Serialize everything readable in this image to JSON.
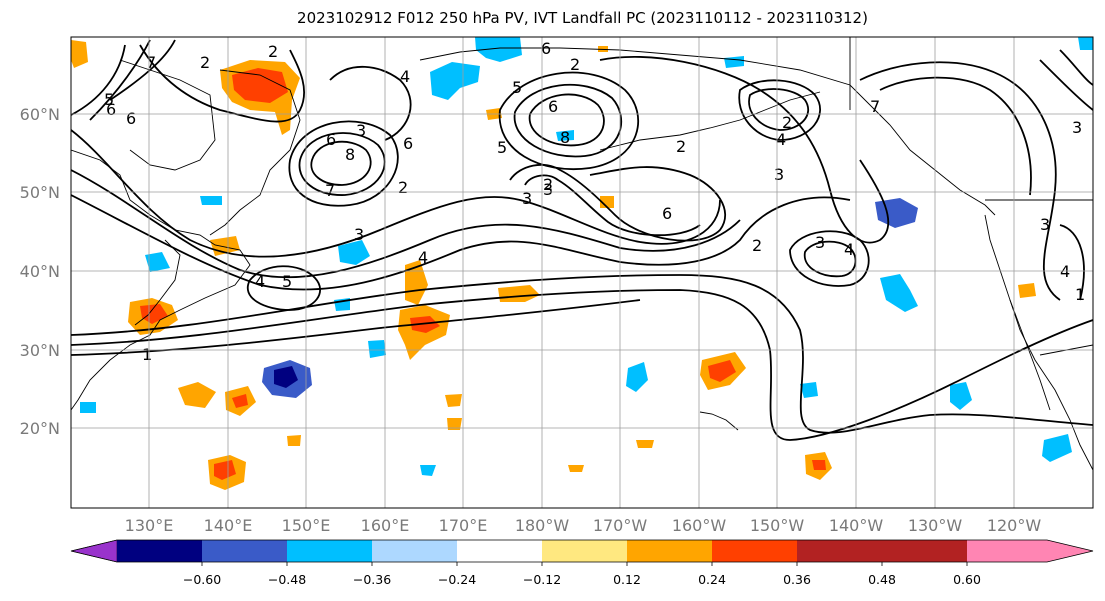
{
  "title": "2023102912 F012 250 hPa PV, IVT Landfall PC (2023110112 - 2023110312)",
  "lat_labels": [
    "60°N",
    "50°N",
    "40°N",
    "30°N",
    "20°N"
  ],
  "lon_labels": [
    "130°E",
    "140°E",
    "150°E",
    "160°E",
    "170°E",
    "180°W",
    "170°W",
    "160°W",
    "150°W",
    "140°W",
    "130°W",
    "120°W"
  ],
  "colorbar": {
    "colors": [
      "#9933cc",
      "#000080",
      "#3a5bc8",
      "#00bfff",
      "#add8ff",
      "#ffffff",
      "#ffe880",
      "#ffa500",
      "#ff4000",
      "#b22222",
      "#ff85b3"
    ],
    "tick_labels": [
      "−0.60",
      "−0.48",
      "−0.36",
      "−0.24",
      "−0.12",
      "0.12",
      "0.24",
      "0.36",
      "0.48",
      "0.60"
    ]
  },
  "contour_labels": [
    "7",
    "2",
    "6",
    "5",
    "6",
    "8",
    "3",
    "2",
    "6",
    "5",
    "7",
    "2",
    "8",
    "6",
    "5",
    "2",
    "3",
    "6",
    "2",
    "1",
    "4",
    "3",
    "6",
    "2",
    "3",
    "4",
    "2",
    "7",
    "3",
    "4",
    "3",
    "4",
    "5",
    "1",
    "3",
    "4",
    "3",
    "2",
    "4",
    "6"
  ]
}
